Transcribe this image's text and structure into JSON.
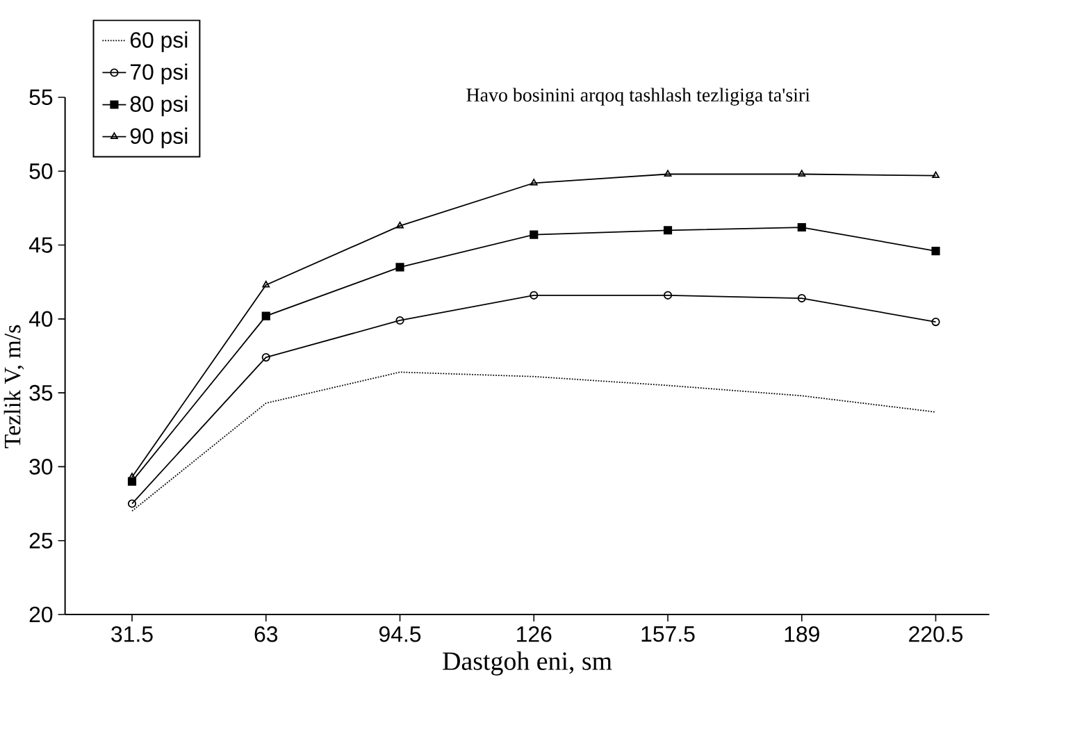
{
  "chart_data": {
    "type": "line",
    "title": "Havo bosinini arqoq tashlash tezligiga ta'siri",
    "xlabel": "Dastgoh eni, sm",
    "ylabel": "Tezlik  V, m/s",
    "categories": [
      "31.5",
      "63",
      "94.5",
      "126",
      "157.5",
      "189",
      "220.5"
    ],
    "ylim": [
      20,
      55
    ],
    "yticks": [
      20,
      25,
      30,
      35,
      40,
      45,
      50,
      55
    ],
    "legend": "top left",
    "series": [
      {
        "name": "60 psi",
        "color": "#000000",
        "line_style": "dotted",
        "marker": "none",
        "values": [
          27.0,
          34.3,
          36.4,
          36.1,
          35.5,
          34.8,
          33.7
        ]
      },
      {
        "name": "70 psi",
        "color": "#000000",
        "line_style": "solid",
        "marker": "circle",
        "values": [
          27.5,
          37.4,
          39.9,
          41.6,
          41.6,
          41.4,
          39.8
        ]
      },
      {
        "name": "80 psi",
        "color": "#000000",
        "line_style": "solid",
        "marker": "square",
        "values": [
          29.0,
          40.2,
          43.5,
          45.7,
          46.0,
          46.2,
          44.6
        ]
      },
      {
        "name": "90 psi",
        "color": "#000000",
        "line_style": "solid",
        "marker": "triangle",
        "values": [
          29.3,
          42.3,
          46.3,
          49.2,
          49.8,
          49.8,
          49.7
        ]
      }
    ]
  }
}
